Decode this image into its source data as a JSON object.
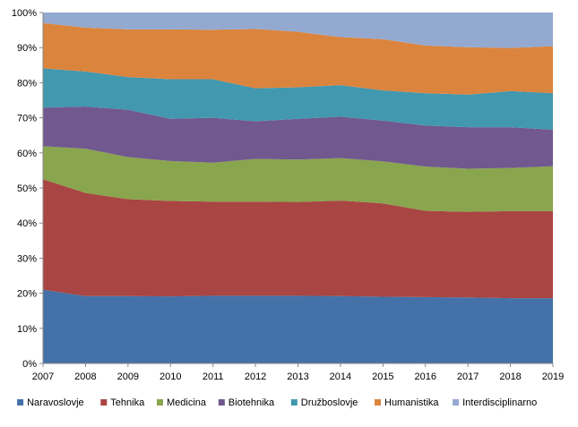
{
  "chart_data": {
    "type": "area",
    "stacked": "percent",
    "x": [
      "2007",
      "2008",
      "2009",
      "2010",
      "2011",
      "2012",
      "2013",
      "2014",
      "2015",
      "2016",
      "2017",
      "2018",
      "2019"
    ],
    "yticks": [
      "0%",
      "10%",
      "20%",
      "30%",
      "40%",
      "50%",
      "60%",
      "70%",
      "80%",
      "90%",
      "100%"
    ],
    "ylim": [
      0,
      100
    ],
    "legend_position": "bottom",
    "grid": false,
    "series": [
      {
        "name": "Naravoslovje",
        "color": "#4472A8",
        "values": [
          21.0,
          19.2,
          19.2,
          19.1,
          19.3,
          19.3,
          19.3,
          19.2,
          19.0,
          18.9,
          18.8,
          18.6,
          18.6
        ]
      },
      {
        "name": "Tehnika",
        "color": "#A94542",
        "values": [
          31.5,
          29.4,
          27.6,
          27.2,
          26.8,
          26.8,
          26.7,
          27.2,
          26.6,
          24.6,
          24.4,
          24.8,
          24.8
        ]
      },
      {
        "name": "Medicina",
        "color": "#89A54E",
        "values": [
          9.4,
          12.6,
          12.0,
          11.4,
          11.1,
          12.2,
          12.1,
          12.1,
          12.0,
          12.6,
          12.3,
          12.3,
          12.8
        ]
      },
      {
        "name": "Biotehnika",
        "color": "#71588F",
        "values": [
          11.0,
          12.0,
          13.5,
          12.0,
          12.8,
          10.7,
          11.6,
          11.8,
          11.6,
          11.7,
          11.8,
          11.6,
          10.4
        ]
      },
      {
        "name": "Družboslovje",
        "color": "#4198AF",
        "values": [
          11.2,
          10.0,
          9.3,
          11.3,
          11.0,
          9.4,
          9.0,
          9.0,
          8.6,
          9.2,
          9.3,
          10.3,
          10.4
        ]
      },
      {
        "name": "Humanistika",
        "color": "#DB843D",
        "values": [
          12.9,
          12.5,
          13.6,
          14.2,
          14.1,
          16.9,
          15.8,
          13.7,
          14.6,
          13.6,
          13.5,
          12.3,
          13.4
        ]
      },
      {
        "name": "Interdisciplinarno",
        "color": "#93A9CF",
        "values": [
          3.0,
          4.3,
          4.8,
          4.8,
          4.9,
          4.7,
          5.5,
          7.0,
          7.6,
          9.4,
          9.9,
          10.1,
          9.6
        ]
      }
    ]
  }
}
